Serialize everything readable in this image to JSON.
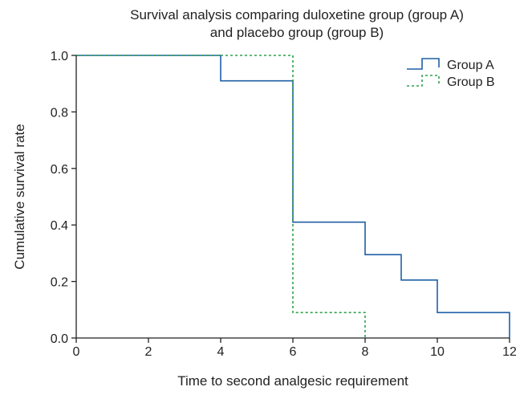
{
  "chart_data": {
    "type": "line",
    "step": true,
    "title": [
      "Survival analysis comparing duloxetine group (group A)",
      "and placebo group (group B)"
    ],
    "xlabel": "Time to second analgesic requirement",
    "ylabel": "Cumulative survival rate",
    "xlim": [
      0,
      12
    ],
    "ylim": [
      0,
      1.0
    ],
    "xticks": [
      0,
      2,
      4,
      6,
      8,
      10,
      12
    ],
    "xtick_labels": [
      "0",
      "2",
      "4",
      "6",
      "8",
      "10",
      "12"
    ],
    "yticks": [
      0,
      0.2,
      0.4,
      0.6,
      0.8,
      1.0
    ],
    "ytick_labels": [
      "0.0",
      "0.2",
      "0.4",
      "0.6",
      "0.8",
      "1.0"
    ],
    "grid": false,
    "legend_position": "top-right",
    "series": [
      {
        "name": "Group A",
        "color": "#1f5fa6",
        "line_style": "solid",
        "x": [
          0,
          4,
          6,
          8,
          9,
          10,
          12
        ],
        "y": [
          1.0,
          0.91,
          0.41,
          0.295,
          0.205,
          0.09,
          0.0
        ]
      },
      {
        "name": "Group B",
        "color": "#2ca24a",
        "line_style": "dotted",
        "x": [
          0,
          6,
          8
        ],
        "y": [
          1.0,
          0.09,
          0.0
        ]
      }
    ]
  }
}
